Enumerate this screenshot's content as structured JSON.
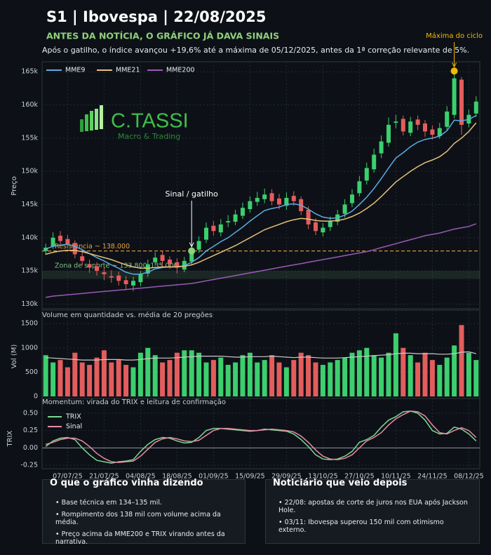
{
  "chart_data": {
    "type": "candlestick",
    "title": "S1 | Ibovespa | 22/08/2025",
    "subtitle": "ANTES DA NOTÍCIA, O GRÁFICO JÁ DAVA SINAIS",
    "description": "Após o gatilho, o índice avançou +19,6% até a máxima de 05/12/2025, antes da 1ª correção relevante de 5%.",
    "logo": {
      "name": "C.TASSI",
      "tagline": "Macro & Trading"
    },
    "ylabel": "Preço",
    "categories": [
      null,
      null,
      null,
      "07/07/25",
      null,
      null,
      null,
      null,
      "21/07/25",
      null,
      null,
      null,
      null,
      "04/08/25",
      null,
      null,
      null,
      null,
      "18/08/25",
      null,
      null,
      null,
      null,
      "01/09/25",
      null,
      null,
      null,
      null,
      "15/09/25",
      null,
      null,
      null,
      null,
      "29/09/25",
      null,
      null,
      null,
      null,
      "13/10/25",
      null,
      null,
      null,
      null,
      "27/10/25",
      null,
      null,
      null,
      null,
      "10/11/25",
      null,
      null,
      null,
      null,
      "24/11/25",
      null,
      null,
      null,
      null,
      "08/12/25",
      null
    ],
    "open": [
      138000,
      138700,
      140300,
      139800,
      139200,
      137200,
      136000,
      135700,
      134800,
      134200,
      134300,
      133600,
      132800,
      133300,
      134600,
      136300,
      137400,
      136700,
      136300,
      135200,
      136400,
      138200,
      139700,
      141800,
      140800,
      142300,
      142400,
      143300,
      144300,
      145400,
      145800,
      146700,
      145900,
      144800,
      146300,
      145800,
      144200,
      142300,
      140800,
      141600,
      142400,
      143600,
      145200,
      146700,
      148600,
      150300,
      152700,
      154300,
      157300,
      157900,
      155800,
      157800,
      157200,
      156300,
      155300,
      156700,
      158500,
      163800,
      157200,
      158700
    ],
    "high": [
      139100,
      140800,
      141000,
      140400,
      139600,
      137900,
      136700,
      136300,
      135600,
      135100,
      134900,
      134200,
      134100,
      135000,
      136700,
      137800,
      138000,
      137200,
      136900,
      137100,
      138600,
      140200,
      142300,
      142500,
      142800,
      143400,
      144200,
      145300,
      146200,
      146900,
      147400,
      147300,
      146600,
      146800,
      147000,
      146200,
      144700,
      142900,
      142200,
      143200,
      144200,
      145800,
      147300,
      149300,
      151300,
      153400,
      155400,
      158100,
      158500,
      158400,
      158200,
      158400,
      157700,
      156900,
      157300,
      159800,
      165100,
      164200,
      159300,
      161300
    ],
    "low": [
      137400,
      138300,
      139000,
      138400,
      136900,
      135800,
      134700,
      134300,
      133600,
      133200,
      132800,
      132100,
      132000,
      132700,
      134100,
      135800,
      135900,
      135300,
      134600,
      134800,
      136000,
      137700,
      139200,
      140300,
      140200,
      141600,
      141900,
      142800,
      143800,
      144800,
      145200,
      144900,
      144300,
      144200,
      144800,
      143400,
      141300,
      140400,
      140200,
      141000,
      141900,
      143000,
      144600,
      146200,
      148000,
      149800,
      152000,
      153700,
      156500,
      155400,
      155300,
      156200,
      155200,
      154800,
      154900,
      156200,
      158000,
      155500,
      156600,
      158200
    ],
    "close": [
      138500,
      140000,
      139500,
      139000,
      137500,
      136500,
      135500,
      135000,
      134500,
      134000,
      133500,
      133000,
      133500,
      134500,
      136000,
      137000,
      136500,
      136000,
      135500,
      136500,
      138000,
      139500,
      141500,
      141000,
      142000,
      142500,
      143500,
      144500,
      145500,
      146000,
      146500,
      145500,
      145000,
      146000,
      145500,
      144000,
      142000,
      141000,
      141500,
      142500,
      143500,
      145000,
      146500,
      148500,
      150500,
      152500,
      154500,
      157000,
      157500,
      156000,
      157500,
      157000,
      156000,
      155500,
      156500,
      159000,
      164000,
      157000,
      158500,
      160500
    ],
    "up_color": "#3ccf6e",
    "down_color": "#e35d5d",
    "series": [
      {
        "name": "MME9",
        "color": "#5dade2",
        "values": [
          138300,
          138700,
          138900,
          139000,
          138700,
          138200,
          137600,
          137000,
          136500,
          135900,
          135400,
          134800,
          134500,
          134500,
          134800,
          135300,
          135500,
          135600,
          135600,
          135800,
          136300,
          137000,
          138000,
          138700,
          139400,
          140000,
          140800,
          141600,
          142500,
          143300,
          144100,
          144400,
          144600,
          145000,
          145100,
          144900,
          144300,
          143600,
          143100,
          142900,
          143000,
          143400,
          144000,
          145000,
          146100,
          147400,
          148900,
          150500,
          152000,
          152800,
          153700,
          154400,
          154800,
          155000,
          155300,
          156100,
          157700,
          157600,
          157800,
          158400
        ]
      },
      {
        "name": "MME21",
        "color": "#e6c07b",
        "values": [
          137500,
          137800,
          138000,
          138100,
          138100,
          137900,
          137600,
          137300,
          137000,
          136700,
          136300,
          135900,
          135600,
          135400,
          135400,
          135500,
          135600,
          135600,
          135600,
          135700,
          135900,
          136300,
          136800,
          137300,
          137800,
          138300,
          138800,
          139400,
          140000,
          140600,
          141200,
          141600,
          142000,
          142400,
          142700,
          142900,
          142800,
          142600,
          142500,
          142500,
          142600,
          142800,
          143200,
          143700,
          144400,
          145200,
          146200,
          147300,
          148400,
          149200,
          150000,
          150700,
          151300,
          151700,
          152200,
          153000,
          154200,
          155000,
          156000,
          157300
        ]
      },
      {
        "name": "MME200",
        "color": "#9b59b6",
        "values": [
          131000,
          131200,
          131300,
          131400,
          131500,
          131600,
          131700,
          131800,
          131900,
          132000,
          132100,
          132200,
          132300,
          132400,
          132500,
          132600,
          132700,
          132800,
          132900,
          133000,
          133100,
          133300,
          133500,
          133700,
          133900,
          134100,
          134300,
          134500,
          134700,
          134900,
          135100,
          135300,
          135500,
          135700,
          135900,
          136100,
          136300,
          136500,
          136700,
          136900,
          137100,
          137300,
          137500,
          137700,
          137900,
          138200,
          138500,
          138800,
          139100,
          139400,
          139700,
          140000,
          140300,
          140500,
          140700,
          141000,
          141300,
          141500,
          141700,
          142100
        ]
      }
    ],
    "ylim": [
      129300,
      166500
    ],
    "yticks": [
      {
        "value": 130000,
        "label": "130k"
      },
      {
        "value": 135000,
        "label": "135k"
      },
      {
        "value": 140000,
        "label": "140k"
      },
      {
        "value": 145000,
        "label": "145k"
      },
      {
        "value": 150000,
        "label": "150k"
      },
      {
        "value": 155000,
        "label": "155k"
      },
      {
        "value": 160000,
        "label": "160k"
      },
      {
        "value": 165000,
        "label": "165k"
      }
    ],
    "grid": true,
    "legend": "upper-left",
    "resistance": {
      "label": "Resistência ~ 138.000",
      "value": 138000,
      "color": "#e6a23c"
    },
    "support_zone": {
      "label": "Zona de suporte ~ 133.800–135.000",
      "range": [
        133800,
        135000
      ],
      "color": "#7ec07e"
    },
    "signal": {
      "label": "Sinal / gatilho",
      "value": 138000,
      "color": "#8fd17a"
    },
    "cycle_max": {
      "label": "Máxima do ciclo",
      "value": 165100,
      "color": "#f5b800"
    },
    "volume": {
      "title": "Volume em quantidade vs. média de 20 pregões",
      "ylabel": "Vol (M)",
      "values": [
        850,
        700,
        750,
        600,
        900,
        700,
        650,
        800,
        950,
        700,
        750,
        650,
        600,
        900,
        1000,
        850,
        700,
        750,
        900,
        950,
        950,
        900,
        700,
        750,
        800,
        650,
        700,
        850,
        900,
        700,
        750,
        850,
        700,
        600,
        750,
        900,
        850,
        700,
        650,
        700,
        750,
        800,
        900,
        950,
        1000,
        850,
        800,
        900,
        1300,
        1000,
        850,
        700,
        900,
        750,
        650,
        800,
        1050,
        1470,
        900,
        750
      ],
      "average": [
        800,
        790,
        780,
        770,
        760,
        750,
        750,
        750,
        760,
        760,
        760,
        750,
        750,
        760,
        780,
        790,
        790,
        790,
        800,
        810,
        820,
        830,
        830,
        830,
        830,
        820,
        810,
        810,
        820,
        820,
        820,
        830,
        820,
        810,
        800,
        810,
        810,
        800,
        790,
        790,
        790,
        800,
        810,
        820,
        830,
        840,
        850,
        860,
        880,
        890,
        890,
        880,
        880,
        880,
        870,
        870,
        880,
        910,
        920,
        880
      ],
      "average_color": "#c9c9c9",
      "ylim": [
        0,
        1590
      ],
      "yticks": [
        0,
        500,
        1000,
        1500
      ]
    },
    "trix": {
      "title": "Momentum: virada do TRIX e leitura de confirmação",
      "ylabel": "TRIX",
      "series": [
        {
          "name": "TRIX",
          "color": "#7bd88f",
          "values": [
            0.02,
            0.1,
            0.14,
            0.15,
            0.12,
            0.0,
            -0.1,
            -0.18,
            -0.2,
            -0.22,
            -0.2,
            -0.19,
            -0.17,
            -0.05,
            0.05,
            0.12,
            0.15,
            0.14,
            0.1,
            0.07,
            0.08,
            0.15,
            0.25,
            0.28,
            0.28,
            0.27,
            0.26,
            0.25,
            0.24,
            0.25,
            0.27,
            0.26,
            0.25,
            0.24,
            0.2,
            0.12,
            0.02,
            -0.1,
            -0.16,
            -0.17,
            -0.16,
            -0.12,
            -0.05,
            0.08,
            0.12,
            0.18,
            0.3,
            0.4,
            0.45,
            0.52,
            0.53,
            0.5,
            0.4,
            0.25,
            0.2,
            0.21,
            0.3,
            0.27,
            0.2,
            0.1
          ]
        },
        {
          "name": "Sinal",
          "color": "#e88aa8",
          "values": [
            0.05,
            0.08,
            0.12,
            0.14,
            0.14,
            0.1,
            0.02,
            -0.08,
            -0.15,
            -0.2,
            -0.21,
            -0.2,
            -0.19,
            -0.12,
            -0.02,
            0.08,
            0.13,
            0.15,
            0.13,
            0.1,
            0.09,
            0.11,
            0.18,
            0.25,
            0.28,
            0.28,
            0.27,
            0.26,
            0.25,
            0.25,
            0.26,
            0.27,
            0.26,
            0.25,
            0.23,
            0.17,
            0.08,
            -0.03,
            -0.12,
            -0.16,
            -0.17,
            -0.15,
            -0.1,
            0.0,
            0.1,
            0.15,
            0.22,
            0.33,
            0.42,
            0.48,
            0.53,
            0.52,
            0.46,
            0.33,
            0.22,
            0.2,
            0.25,
            0.29,
            0.25,
            0.15
          ]
        }
      ],
      "ylim": [
        -0.3,
        0.61
      ],
      "yticks": [
        -0.25,
        {
          "value": 0,
          "label": "0.00"
        },
        0.25,
        {
          "value": 0.5,
          "label": "0.50"
        }
      ],
      "legend": "upper-left"
    }
  },
  "panels": {
    "left": {
      "title": "O que o gráfico vinha dizendo",
      "items": [
        "• Base técnica em 134–135 mil.",
        "• Rompimento dos 138 mil com volume acima da média.",
        "• Preço acima da MME200 e TRIX virando antes da narrativa."
      ]
    },
    "right": {
      "title": "Noticiário que veio depois",
      "items": [
        "• 22/08: apostas de corte de juros nos EUA após Jackson Hole.",
        "• 03/11: Ibovespa superou 150 mil com otimismo externo."
      ]
    }
  }
}
